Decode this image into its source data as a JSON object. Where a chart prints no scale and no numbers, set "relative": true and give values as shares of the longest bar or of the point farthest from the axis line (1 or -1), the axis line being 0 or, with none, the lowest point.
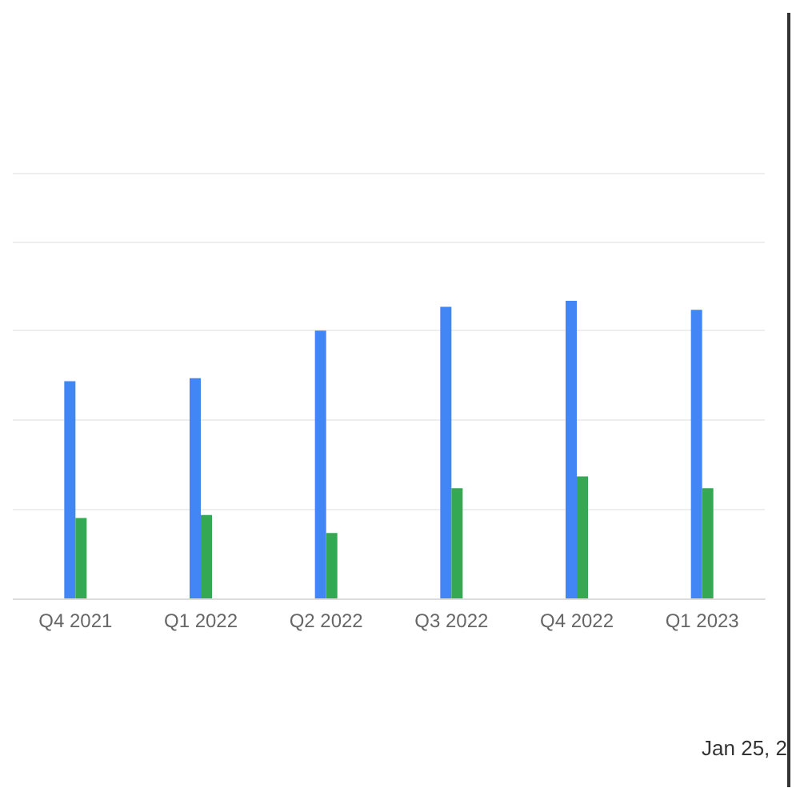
{
  "chart_data": {
    "type": "bar",
    "relative": true,
    "grid": "y",
    "categories": [
      "Q4 2021",
      "Q1 2022",
      "Q2 2022",
      "Q3 2022",
      "Q4 2022",
      "Q1 2023"
    ],
    "series": [
      {
        "color": "#4285f4",
        "values": [
          0.73,
          0.74,
          0.9,
          0.98,
          1,
          0.97
        ]
      },
      {
        "color": "#34a853",
        "values": [
          0.27,
          0.28,
          0.22,
          0.37,
          0.41,
          0.37
        ]
      }
    ],
    "annotations": [
      "Jan 25, 2"
    ]
  }
}
